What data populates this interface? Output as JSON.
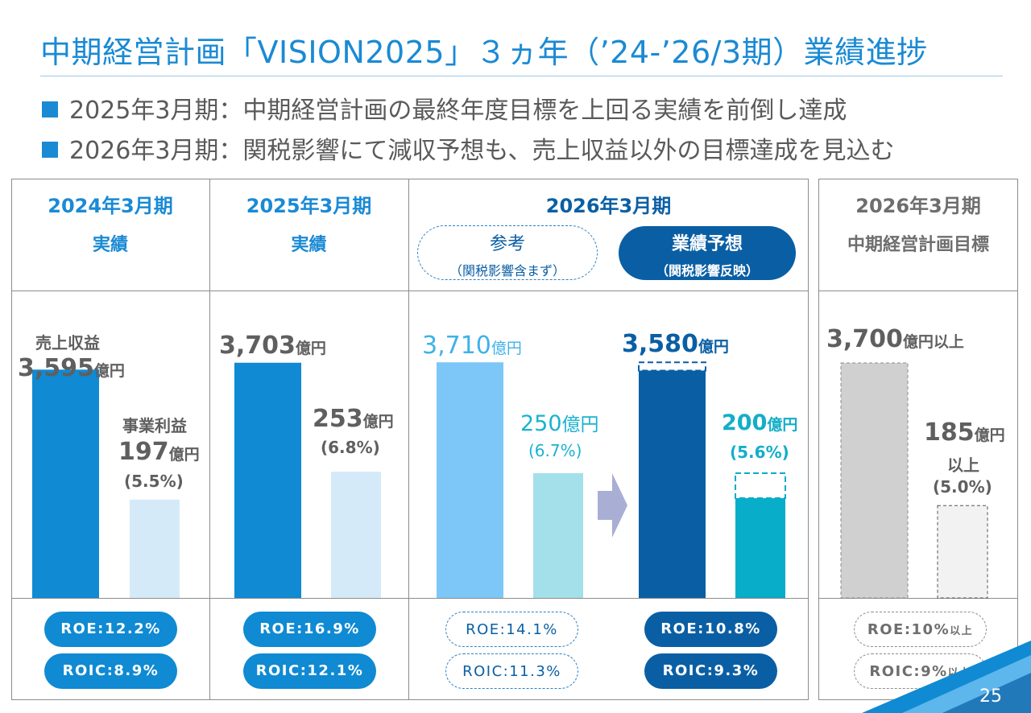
{
  "header": {
    "title": "中期経営計画「VISION2025」３ヵ年（’24-’26/3期）業績進捗",
    "bullets": [
      "2025年3月期：中期経営計画の最終年度目標を上回る実績を前倒し達成",
      "2026年3月期：関税影響にて減収予想も、売上収益以外の目標達成を見込む"
    ]
  },
  "columns": {
    "fy2024": {
      "year": "2024年3月期",
      "sub": "実績"
    },
    "fy2025": {
      "year": "2025年3月期",
      "sub": "実績"
    },
    "fy2026": {
      "year": "2026年3月期",
      "reference": {
        "label": "参考",
        "note": "（関税影響含まず）"
      },
      "forecast": {
        "label": "業績予想",
        "note": "（関税影響反映）"
      }
    },
    "target": {
      "year": "2026年3月期",
      "sub": "中期経営計画目標"
    }
  },
  "labels": {
    "revenue_name": "売上収益",
    "profit_name": "事業利益",
    "unit": "億円",
    "unit_plus": "億円以上",
    "over": "以上"
  },
  "values": {
    "fy2024": {
      "revenue": "3,595",
      "profit": "197",
      "margin": "(5.5%)"
    },
    "fy2025": {
      "revenue": "3,703",
      "profit": "253",
      "margin": "(6.8%)"
    },
    "fy2026_ref": {
      "revenue": "3,710",
      "profit": "250",
      "margin": "(6.7%)"
    },
    "fy2026_fcst": {
      "revenue": "3,580",
      "profit": "200",
      "margin": "(5.6%)"
    },
    "target": {
      "revenue": "3,700",
      "profit": "185",
      "margin": "(5.0%)"
    }
  },
  "kpis": {
    "fy2024": {
      "roe": "ROE:12.2%",
      "roic": "ROIC:8.9%"
    },
    "fy2025": {
      "roe": "ROE:16.9%",
      "roic": "ROIC:12.1%"
    },
    "fy2026_ref": {
      "roe": "ROE:14.1%",
      "roic": "ROIC:11.3%"
    },
    "fy2026_fcst": {
      "roe": "ROE:10.8%",
      "roic": "ROIC:9.3%"
    },
    "target": {
      "roe": "ROE:10%",
      "roic": "ROIC:9%",
      "suffix": "以上"
    }
  },
  "chart_data": {
    "type": "bar",
    "title": "中期経営計画「VISION2025」３ヵ年（’24-’26/3期）業績進捗",
    "categories": [
      "2024年3月期 実績",
      "2025年3月期 実績",
      "2026年3月期 参考",
      "2026年3月期 業績予想",
      "2026年3月期 中期経営計画目標"
    ],
    "unit": "億円",
    "series": [
      {
        "name": "売上収益",
        "values": [
          3595,
          3703,
          3710,
          3580,
          3700
        ]
      },
      {
        "name": "事業利益",
        "values": [
          197,
          253,
          250,
          200,
          185
        ]
      }
    ],
    "margins_percent": [
      5.5,
      6.8,
      6.7,
      5.6,
      5.0
    ],
    "roe_percent": [
      12.2,
      16.9,
      14.1,
      10.8,
      10
    ],
    "roic_percent": [
      8.9,
      12.1,
      11.3,
      9.3,
      9
    ],
    "colors": {
      "revenue": [
        "#0f8ad3",
        "#0f8ad3",
        "#7cc7f7",
        "#0a5fa4",
        "#d0d0d0"
      ],
      "profit": [
        "#d4eaf8",
        "#d4eaf8",
        "#a3e0ea",
        "#07adc9",
        "#f2f2f2"
      ],
      "arrow": "#a9aed5"
    },
    "revenue_axis_max": 3700,
    "profit_axis_scale": "independent (not to scale with revenue)"
  },
  "page": {
    "number": "25"
  },
  "colors": {
    "accent": "#1a8ad4",
    "navy": "#0a5fa4",
    "grid": "#8c8c8c"
  }
}
